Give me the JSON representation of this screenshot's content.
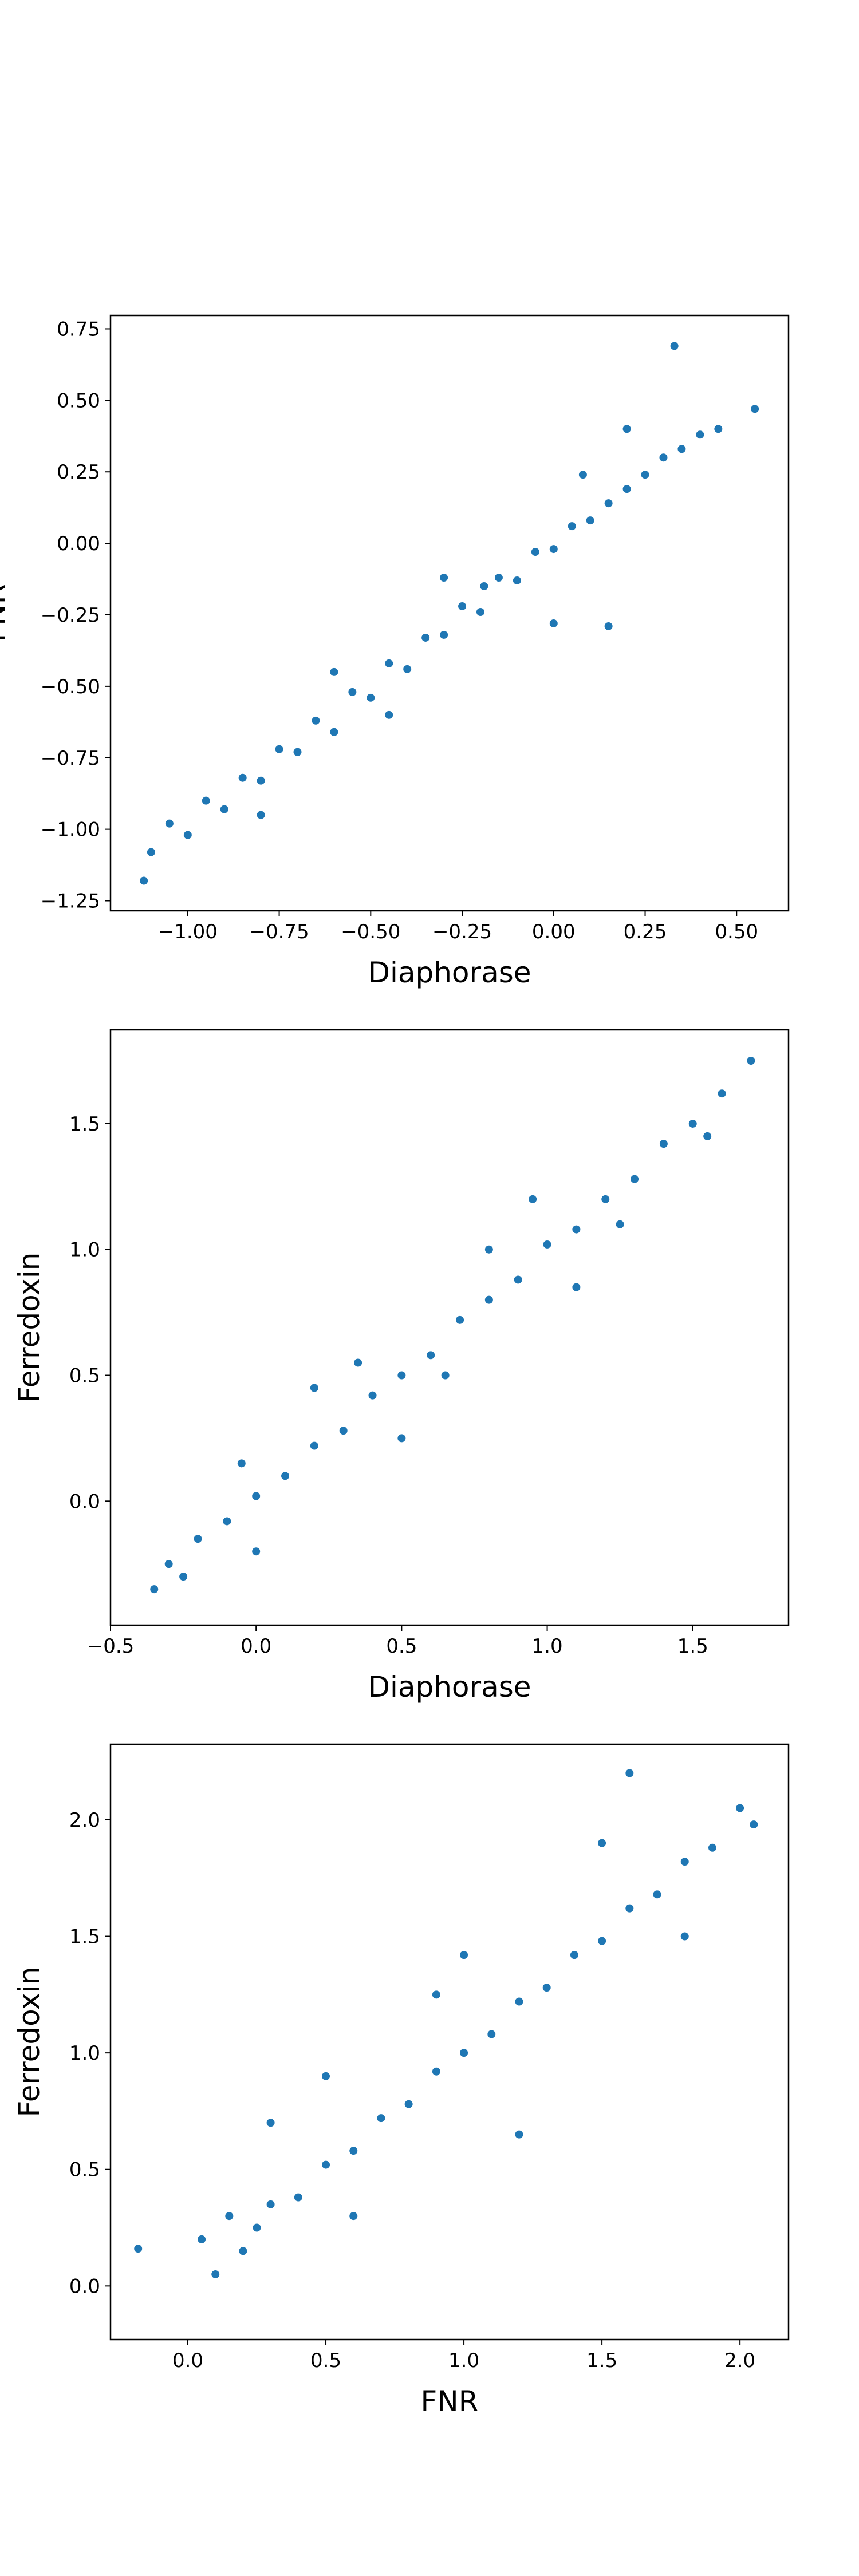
{
  "chart_data": [
    {
      "type": "scatter",
      "xlabel": "Diaphorase",
      "ylabel": "FNR",
      "color": "#1f77b4",
      "xlim": [
        -1.211,
        0.642
      ],
      "ylim": [
        -1.285,
        0.797
      ],
      "xticks": [
        {
          "value": -1.0,
          "label": "−1.00"
        },
        {
          "value": -0.75,
          "label": "−0.75"
        },
        {
          "value": -0.5,
          "label": "−0.50"
        },
        {
          "value": -0.25,
          "label": "−0.25"
        },
        {
          "value": 0.0,
          "label": "0.00"
        },
        {
          "value": 0.25,
          "label": "0.25"
        },
        {
          "value": 0.5,
          "label": "0.50"
        }
      ],
      "yticks": [
        {
          "value": 0.75,
          "label": "0.75"
        },
        {
          "value": 0.5,
          "label": "0.50"
        },
        {
          "value": 0.25,
          "label": "0.25"
        },
        {
          "value": 0.0,
          "label": "0.00"
        },
        {
          "value": -0.25,
          "label": "−0.25"
        },
        {
          "value": -0.5,
          "label": "−0.50"
        },
        {
          "value": -0.75,
          "label": "−0.75"
        },
        {
          "value": -1.0,
          "label": "−1.00"
        },
        {
          "value": -1.25,
          "label": "−1.25"
        }
      ],
      "x": [
        -1.1,
        -1.05,
        -1.0,
        -0.95,
        -0.9,
        -0.85,
        -0.8,
        -0.75,
        -0.7,
        -0.65,
        -0.6,
        -0.55,
        -0.5,
        -0.45,
        -0.4,
        -0.35,
        -0.3,
        -0.25,
        -0.2,
        -0.15,
        -0.1,
        -0.05,
        0.0,
        0.05,
        0.1,
        0.15,
        0.2,
        0.25,
        0.3,
        0.35,
        0.4,
        0.45,
        -0.6,
        -0.3,
        0.0,
        0.2,
        -0.8,
        -0.45,
        0.08,
        0.55,
        -1.12,
        0.33,
        -0.19,
        0.15
      ],
      "y": [
        -1.08,
        -0.98,
        -1.02,
        -0.9,
        -0.93,
        -0.82,
        -0.83,
        -0.72,
        -0.73,
        -0.62,
        -0.66,
        -0.52,
        -0.54,
        -0.42,
        -0.44,
        -0.33,
        -0.32,
        -0.22,
        -0.24,
        -0.12,
        -0.13,
        -0.03,
        -0.02,
        0.06,
        0.08,
        0.14,
        0.19,
        0.24,
        0.3,
        0.33,
        0.38,
        0.4,
        -0.45,
        -0.12,
        -0.28,
        0.4,
        -0.95,
        -0.6,
        0.24,
        0.47,
        -1.18,
        0.69,
        -0.15,
        -0.29
      ]
    },
    {
      "type": "scatter",
      "xlabel": "Diaphorase",
      "ylabel": "Ferredoxin",
      "color": "#1f77b4",
      "xlim": [
        -0.5,
        1.829
      ],
      "ylim": [
        -0.493,
        1.873
      ],
      "xticks": [
        {
          "value": -0.5,
          "label": "−0.5"
        },
        {
          "value": 0.0,
          "label": "0.0"
        },
        {
          "value": 0.5,
          "label": "0.5"
        },
        {
          "value": 1.0,
          "label": "1.0"
        },
        {
          "value": 1.5,
          "label": "1.5"
        }
      ],
      "yticks": [
        {
          "value": 0.0,
          "label": "0.0"
        },
        {
          "value": 0.5,
          "label": "0.5"
        },
        {
          "value": 1.0,
          "label": "1.0"
        },
        {
          "value": 1.5,
          "label": "1.5"
        }
      ],
      "x": [
        -0.35,
        -0.3,
        -0.25,
        -0.2,
        -0.1,
        0.0,
        0.1,
        0.2,
        0.3,
        0.4,
        0.5,
        0.6,
        0.7,
        0.8,
        0.9,
        1.0,
        1.1,
        1.2,
        1.3,
        1.4,
        1.5,
        1.6,
        1.7,
        0.2,
        0.5,
        0.8,
        1.1,
        0.35,
        0.65,
        0.95,
        1.25,
        0.0,
        -0.05,
        1.55
      ],
      "y": [
        -0.35,
        -0.25,
        -0.3,
        -0.15,
        -0.08,
        0.02,
        0.1,
        0.22,
        0.28,
        0.42,
        0.5,
        0.58,
        0.72,
        0.8,
        0.88,
        1.02,
        1.08,
        1.2,
        1.28,
        1.42,
        1.5,
        1.62,
        1.75,
        0.45,
        0.25,
        1.0,
        0.85,
        0.55,
        0.5,
        1.2,
        1.1,
        -0.2,
        0.15,
        1.45
      ]
    },
    {
      "type": "scatter",
      "xlabel": "FNR",
      "ylabel": "Ferredoxin",
      "color": "#1f77b4",
      "xlim": [
        -0.28,
        2.176
      ],
      "ylim": [
        -0.23,
        2.324
      ],
      "xticks": [
        {
          "value": 0.0,
          "label": "0.0"
        },
        {
          "value": 0.5,
          "label": "0.5"
        },
        {
          "value": 1.0,
          "label": "1.0"
        },
        {
          "value": 1.5,
          "label": "1.5"
        },
        {
          "value": 2.0,
          "label": "2.0"
        }
      ],
      "yticks": [
        {
          "value": 0.0,
          "label": "0.0"
        },
        {
          "value": 0.5,
          "label": "0.5"
        },
        {
          "value": 1.0,
          "label": "1.0"
        },
        {
          "value": 1.5,
          "label": "1.5"
        },
        {
          "value": 2.0,
          "label": "2.0"
        }
      ],
      "x": [
        -0.18,
        0.05,
        0.1,
        0.15,
        0.2,
        0.25,
        0.3,
        0.4,
        0.5,
        0.6,
        0.7,
        0.8,
        0.9,
        1.0,
        1.1,
        1.2,
        1.3,
        1.4,
        1.5,
        1.6,
        1.7,
        1.8,
        1.9,
        2.0,
        2.05,
        0.3,
        0.6,
        0.9,
        1.2,
        1.5,
        1.8,
        0.5,
        1.0,
        1.6
      ],
      "y": [
        0.16,
        0.2,
        0.05,
        0.3,
        0.15,
        0.25,
        0.35,
        0.38,
        0.52,
        0.58,
        0.72,
        0.78,
        0.92,
        1.0,
        1.08,
        1.22,
        1.28,
        1.42,
        1.48,
        1.62,
        1.68,
        1.82,
        1.88,
        2.05,
        1.98,
        0.7,
        0.3,
        1.25,
        0.65,
        1.9,
        1.5,
        0.9,
        1.42,
        2.2
      ]
    }
  ]
}
